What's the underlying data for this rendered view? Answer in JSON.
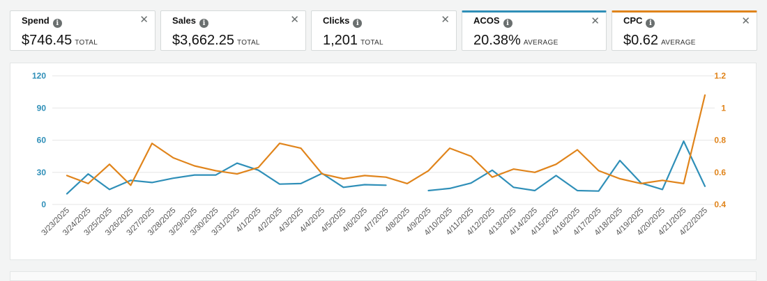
{
  "metrics": [
    {
      "label": "Spend",
      "value": "$746.45",
      "unit": "TOTAL",
      "close": "✕"
    },
    {
      "label": "Sales",
      "value": "$3,662.25",
      "unit": "TOTAL",
      "close": "✕"
    },
    {
      "label": "Clicks",
      "value": "1,201",
      "unit": "TOTAL",
      "close": "✕"
    },
    {
      "label": "ACOS",
      "value": "20.38%",
      "unit": "AVERAGE",
      "close": "✕",
      "color": "#2f8fb8"
    },
    {
      "label": "CPC",
      "value": "$0.62",
      "unit": "AVERAGE",
      "close": "✕",
      "color": "#e0841b"
    }
  ],
  "info_glyph": "i",
  "chart_data": {
    "type": "line",
    "categories": [
      "3/23/2025",
      "3/24/2025",
      "3/25/2025",
      "3/26/2025",
      "3/27/2025",
      "3/28/2025",
      "3/29/2025",
      "3/30/2025",
      "3/31/2025",
      "4/1/2025",
      "4/2/2025",
      "4/3/2025",
      "4/4/2025",
      "4/5/2025",
      "4/6/2025",
      "4/7/2025",
      "4/8/2025",
      "4/9/2025",
      "4/10/2025",
      "4/11/2025",
      "4/12/2025",
      "4/13/2025",
      "4/14/2025",
      "4/15/2025",
      "4/16/2025",
      "4/17/2025",
      "4/18/2025",
      "4/19/2025",
      "4/20/2025",
      "4/21/2025",
      "4/22/2025"
    ],
    "series": [
      {
        "name": "ACOS",
        "axis": "left",
        "color": "#2f8fb8",
        "values": [
          10,
          28.5,
          14,
          22.5,
          20.5,
          24.5,
          27.5,
          27.5,
          38.5,
          32,
          19,
          19.5,
          29,
          16,
          18.5,
          18,
          null,
          13,
          15,
          20,
          32,
          16,
          13,
          27,
          13,
          12.5,
          41,
          20,
          14,
          59,
          17
        ]
      },
      {
        "name": "CPC",
        "axis": "right",
        "color": "#e0841b",
        "values": [
          0.58,
          0.53,
          0.65,
          0.52,
          0.78,
          0.69,
          0.64,
          0.61,
          0.59,
          0.63,
          0.78,
          0.75,
          0.59,
          0.56,
          0.58,
          0.57,
          0.53,
          0.61,
          0.75,
          0.7,
          0.57,
          0.62,
          0.6,
          0.65,
          0.74,
          0.61,
          0.56,
          0.53,
          0.55,
          0.53,
          1.08
        ]
      }
    ],
    "y_left": {
      "min": 0,
      "max": 120,
      "ticks": [
        "0",
        "30",
        "60",
        "90",
        "120"
      ]
    },
    "y_right": {
      "min": 0.4,
      "max": 1.2,
      "ticks": [
        "0.4",
        "0.6",
        "0.8",
        "1",
        "1.2"
      ]
    },
    "grid": true
  }
}
